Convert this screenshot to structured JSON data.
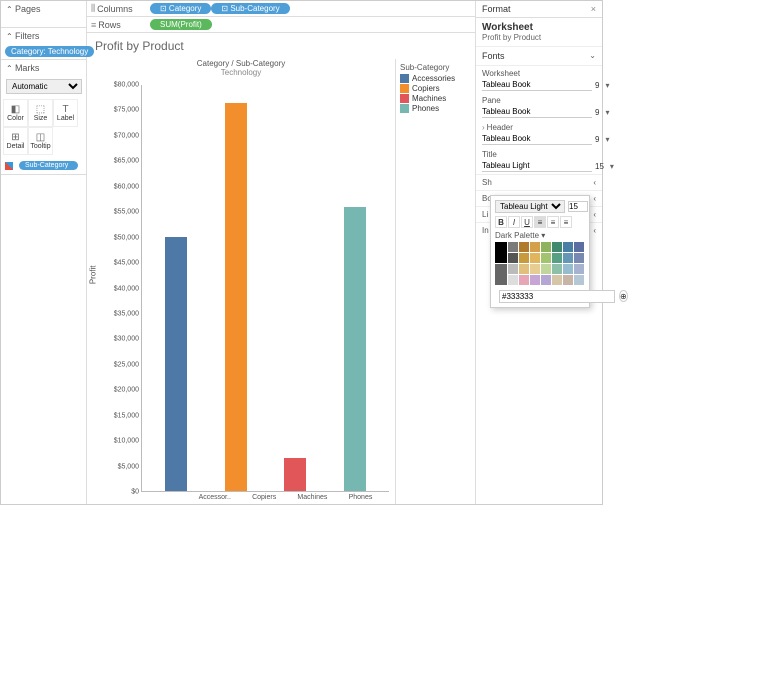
{
  "left": {
    "pages": "Pages",
    "filters": "Filters",
    "filter_pill": "Category: Technology",
    "marks": "Marks",
    "mark_type": "Automatic",
    "buttons": [
      {
        "icon": "◧",
        "label": "Color"
      },
      {
        "icon": "⬚",
        "label": "Size"
      },
      {
        "icon": "T",
        "label": "Label"
      },
      {
        "icon": "⊞",
        "label": "Detail"
      },
      {
        "icon": "◫",
        "label": "Tooltip"
      }
    ],
    "sub_pill": "Sub-Category"
  },
  "shelves": {
    "columns": "Columns",
    "rows": "Rows",
    "col_pills": [
      "Category",
      "Sub-Category"
    ],
    "row_pills": [
      "SUM(Profit)"
    ]
  },
  "chart": {
    "title": "Profit by Product",
    "sub1": "Category / Sub-Category",
    "sub2": "Technology",
    "y_label": "Profit",
    "y_max": 80000,
    "y_step": 5000,
    "currency": "$",
    "bars": [
      {
        "label": "Accessor..",
        "value": 50000,
        "color": "#4e79a7"
      },
      {
        "label": "Copiers",
        "value": 76500,
        "color": "#f28e2b"
      },
      {
        "label": "Machines",
        "value": 6500,
        "color": "#e15759"
      },
      {
        "label": "Phones",
        "value": 56000,
        "color": "#76b7b2"
      }
    ],
    "legend_title": "Sub-Category",
    "legend": [
      {
        "label": "Accessories",
        "color": "#4e79a7"
      },
      {
        "label": "Copiers",
        "color": "#f28e2b"
      },
      {
        "label": "Machines",
        "color": "#e15759"
      },
      {
        "label": "Phones",
        "color": "#76b7b2"
      }
    ]
  },
  "format": {
    "header": "Format",
    "title1": "Worksheet",
    "title2": "Profit by Product",
    "fonts_section": "Fonts",
    "rows": [
      {
        "label": "Worksheet",
        "font": "Tableau Book",
        "size": "9"
      },
      {
        "label": "Pane",
        "font": "Tableau Book",
        "size": "9"
      },
      {
        "label": "Header",
        "font": "Tableau Book",
        "size": "9",
        "arrow": true
      },
      {
        "label": "Title",
        "font": "Tableau Light",
        "size": "15"
      }
    ],
    "collapsed": [
      "Sh",
      "Bo",
      "Li",
      "In"
    ]
  },
  "popup": {
    "font": "Tableau Light",
    "size": "15",
    "palette_label": "Dark Palette",
    "hex": "#333333",
    "row1": [
      "#7b7b7b",
      "#b07a2c",
      "#d4a04a",
      "#8eb35f",
      "#3f8a6e",
      "#4a7fa5",
      "#5b6fa0"
    ],
    "row2": [
      "#555555",
      "#c99a3b",
      "#e0b55e",
      "#a3c46f",
      "#56a083",
      "#6496b5",
      "#7788b3"
    ],
    "row3": [
      "#bbbbbb",
      "#e0c07b",
      "#e8cd93",
      "#c0d69a",
      "#8cc0a8",
      "#96bccf",
      "#a6b2cf"
    ],
    "row4": [
      "#dddddd",
      "#e6a6b5",
      "#c6a6d4",
      "#b5a6d4",
      "#d4c6a6",
      "#c6b5a6",
      "#b5c6d4"
    ]
  }
}
